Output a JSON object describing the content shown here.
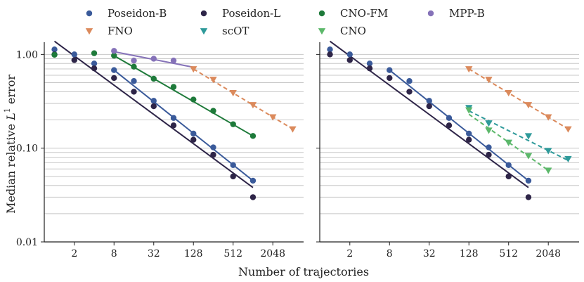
{
  "chart_data": [
    {
      "type": "scatter",
      "panel": "left",
      "xscale": "log2",
      "yscale": "log10",
      "xlabel": "Number of trajectories",
      "ylabel": "Median relative L1 error",
      "ylabel_main": "Median relative ",
      "ylabel_sym": "L",
      "ylabel_sup": "1",
      "ylabel_tail": " error",
      "xlim": [
        0.7,
        6000
      ],
      "ylim": [
        0.01,
        1.35
      ],
      "xticks": [
        2,
        8,
        32,
        128,
        512,
        2048
      ],
      "xticklabels": [
        "2",
        "8",
        "32",
        "128",
        "512",
        "2048"
      ],
      "yticks": [
        0.01,
        0.1,
        1.0
      ],
      "yticklabels": [
        "0.01",
        "0.10",
        "1.00"
      ],
      "series": [
        {
          "name": "Poseidon-B",
          "color": "#3a5a9a",
          "marker": "circle",
          "x": [
            1,
            2,
            4,
            8,
            16,
            32,
            64,
            128,
            256,
            512,
            1024
          ],
          "y": [
            1.13,
            1.0,
            0.8,
            0.68,
            0.52,
            0.32,
            0.21,
            0.143,
            0.102,
            0.066,
            0.045
          ],
          "fit": {
            "x": [
              8,
              1024
            ],
            "y": [
              0.68,
              0.045
            ],
            "style": "solid"
          }
        },
        {
          "name": "Poseidon-L",
          "color": "#2e2548",
          "marker": "circle",
          "x": [
            1,
            2,
            4,
            8,
            16,
            32,
            64,
            128,
            256,
            512,
            1024
          ],
          "y": [
            1.0,
            0.87,
            0.71,
            0.56,
            0.4,
            0.28,
            0.175,
            0.123,
            0.085,
            0.05,
            0.03
          ],
          "fit": {
            "x": [
              1,
              1024
            ],
            "y": [
              1.38,
              0.038
            ],
            "style": "solid"
          }
        },
        {
          "name": "CNO-FM",
          "color": "#1e7a3a",
          "marker": "circle",
          "x": [
            1,
            4,
            8,
            16,
            32,
            64,
            128,
            256,
            512,
            1024
          ],
          "y": [
            0.99,
            1.03,
            0.97,
            0.74,
            0.55,
            0.45,
            0.33,
            0.25,
            0.18,
            0.135
          ],
          "fit": {
            "x": [
              8,
              1024
            ],
            "y": [
              0.97,
              0.135
            ],
            "style": "solid"
          }
        },
        {
          "name": "MPP-B",
          "color": "#8572b8",
          "marker": "circle",
          "x": [
            8,
            16,
            32,
            64
          ],
          "y": [
            1.09,
            0.86,
            0.9,
            0.86
          ],
          "fit": {
            "x": [
              8,
              128
            ],
            "y": [
              1.07,
              0.73
            ],
            "style": "solid"
          }
        },
        {
          "name": "FNO",
          "color": "#db8a5c",
          "marker": "triangle-down",
          "x": [
            128,
            256,
            512,
            1024,
            2048,
            4096
          ],
          "y": [
            0.7,
            0.54,
            0.39,
            0.29,
            0.215,
            0.16
          ],
          "fit": {
            "x": [
              128,
              4096
            ],
            "y": [
              0.7,
              0.16
            ],
            "style": "dashed"
          }
        }
      ]
    },
    {
      "type": "scatter",
      "panel": "right",
      "xscale": "log2",
      "yscale": "log10",
      "xlim": [
        0.7,
        6000
      ],
      "ylim": [
        0.01,
        1.35
      ],
      "xticks": [
        2,
        8,
        32,
        128,
        512,
        2048
      ],
      "xticklabels": [
        "2",
        "8",
        "32",
        "128",
        "512",
        "2048"
      ],
      "yticks": [
        0.01,
        0.1,
        1.0
      ],
      "series": [
        {
          "name": "Poseidon-B",
          "color": "#3a5a9a",
          "marker": "circle",
          "x": [
            1,
            2,
            4,
            8,
            16,
            32,
            64,
            128,
            256,
            512,
            1024
          ],
          "y": [
            1.13,
            1.0,
            0.8,
            0.68,
            0.52,
            0.32,
            0.21,
            0.143,
            0.102,
            0.066,
            0.045
          ],
          "fit": {
            "x": [
              8,
              1024
            ],
            "y": [
              0.68,
              0.045
            ],
            "style": "solid"
          }
        },
        {
          "name": "Poseidon-L",
          "color": "#2e2548",
          "marker": "circle",
          "x": [
            1,
            2,
            4,
            8,
            16,
            32,
            64,
            128,
            256,
            512,
            1024
          ],
          "y": [
            1.0,
            0.87,
            0.71,
            0.56,
            0.4,
            0.28,
            0.175,
            0.123,
            0.085,
            0.05,
            0.03
          ],
          "fit": {
            "x": [
              1,
              1024
            ],
            "y": [
              1.38,
              0.038
            ],
            "style": "solid"
          }
        },
        {
          "name": "FNO",
          "color": "#db8a5c",
          "marker": "triangle-down",
          "x": [
            128,
            256,
            512,
            1024,
            2048,
            4096
          ],
          "y": [
            0.7,
            0.54,
            0.39,
            0.29,
            0.215,
            0.16
          ],
          "fit": {
            "x": [
              128,
              4096
            ],
            "y": [
              0.7,
              0.16
            ],
            "style": "dashed"
          }
        },
        {
          "name": "scOT",
          "color": "#2e9a9a",
          "marker": "triangle-down",
          "x": [
            128,
            256,
            512,
            1024,
            2048,
            4096
          ],
          "y": [
            0.27,
            0.185,
            0.115,
            0.135,
            0.094,
            0.077
          ],
          "fit": {
            "x": [
              128,
              4096
            ],
            "y": [
              0.25,
              0.074
            ],
            "style": "dashed"
          }
        },
        {
          "name": "CNO",
          "color": "#5cb86a",
          "marker": "triangle-down",
          "x": [
            128,
            256,
            512,
            1024,
            2048
          ],
          "y": [
            0.255,
            0.155,
            0.115,
            0.083,
            0.058
          ],
          "fit": {
            "x": [
              128,
              2048
            ],
            "y": [
              0.23,
              0.058
            ],
            "style": "dashed"
          }
        }
      ]
    }
  ],
  "legend": {
    "placement": "top",
    "entries": [
      {
        "name": "Poseidon-B",
        "color": "#3a5a9a",
        "marker": "circle"
      },
      {
        "name": "Poseidon-L",
        "color": "#2e2548",
        "marker": "circle"
      },
      {
        "name": "CNO-FM",
        "color": "#1e7a3a",
        "marker": "circle"
      },
      {
        "name": "MPP-B",
        "color": "#8572b8",
        "marker": "circle"
      },
      {
        "name": "FNO",
        "color": "#db8a5c",
        "marker": "triangle-down"
      },
      {
        "name": "scOT",
        "color": "#2e9a9a",
        "marker": "triangle-down"
      },
      {
        "name": "CNO",
        "color": "#5cb86a",
        "marker": "triangle-down"
      }
    ]
  }
}
